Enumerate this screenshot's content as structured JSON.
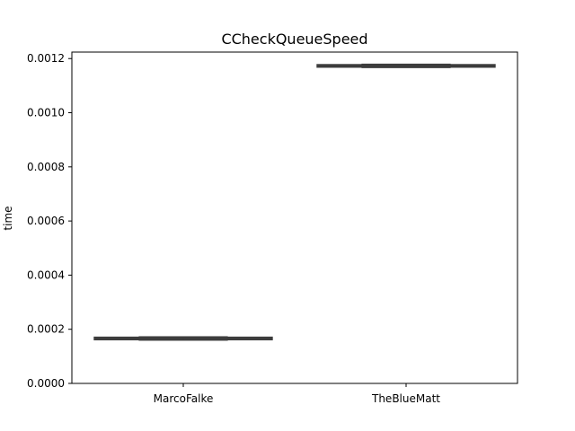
{
  "chart_data": {
    "type": "box",
    "title": "CCheckQueueSpeed",
    "xlabel": "",
    "ylabel": "time",
    "categories": [
      "MarcoFalke",
      "TheBlueMatt"
    ],
    "series": [
      {
        "values": [
          0.000166,
          0.001173
        ]
      }
    ],
    "boxes": [
      {
        "category": "MarcoFalke",
        "whisker_low": 0.000163,
        "q1": 0.000164,
        "median": 0.000166,
        "q3": 0.000168,
        "whisker_high": 0.000168
      },
      {
        "category": "TheBlueMatt",
        "whisker_low": 0.001171,
        "q1": 0.001171,
        "median": 0.001173,
        "q3": 0.001175,
        "whisker_high": 0.001175
      }
    ],
    "ylim": [
      0,
      0.001224
    ],
    "yticks": [
      "0.0000",
      "0.0002",
      "0.0004",
      "0.0006",
      "0.0008",
      "0.0010",
      "0.0012"
    ],
    "ytick_values": [
      0,
      0.0002,
      0.0004,
      0.0006,
      0.0008,
      0.001,
      0.0012
    ],
    "grid": false,
    "colors": {
      "box": "#3d3d3d",
      "axes": "#000000",
      "background": "#ffffff"
    }
  }
}
